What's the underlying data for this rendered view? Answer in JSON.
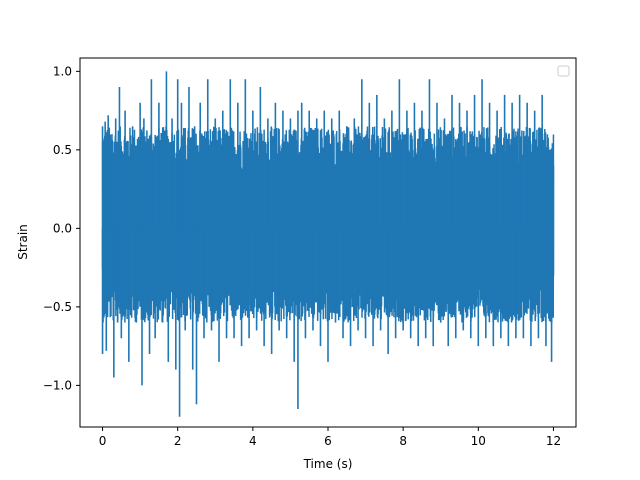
{
  "chart_data": {
    "type": "line",
    "title": "",
    "xlabel": "Time (s)",
    "ylabel": "Strain",
    "xlim": [
      -0.6,
      12.6
    ],
    "ylim": [
      -1.265,
      1.085
    ],
    "xticks": [
      0,
      2,
      4,
      6,
      8,
      10,
      12
    ],
    "xtick_labels": [
      "0",
      "2",
      "4",
      "6",
      "8",
      "10",
      "12"
    ],
    "yticks": [
      -1.0,
      -0.5,
      0.0,
      0.5,
      1.0
    ],
    "ytick_labels": [
      "−1.0",
      "−0.5",
      "0.0",
      "0.5",
      "1.0"
    ],
    "grid": false,
    "legend": {
      "location": "upper right",
      "entries": []
    },
    "series": [
      {
        "color": "#1f77b4",
        "x_range": [
          0,
          12
        ],
        "approx_envelope": {
          "typical_min": -0.6,
          "typical_max": 0.65
        },
        "points": [
          [
            0.0,
            -0.25
          ],
          [
            0.0,
            0.65
          ],
          [
            0.0,
            -0.8
          ],
          [
            0.05,
            0.1
          ],
          [
            0.07,
            0.68
          ],
          [
            0.1,
            -0.78
          ],
          [
            0.15,
            0.72
          ],
          [
            0.2,
            -0.45
          ],
          [
            0.25,
            0.6
          ],
          [
            0.3,
            -0.95
          ],
          [
            0.35,
            0.7
          ],
          [
            0.4,
            -0.6
          ],
          [
            0.45,
            0.9
          ],
          [
            0.5,
            -0.7
          ],
          [
            0.6,
            0.75
          ],
          [
            0.7,
            -0.85
          ],
          [
            0.8,
            0.65
          ],
          [
            0.9,
            -0.6
          ],
          [
            1.0,
            0.8
          ],
          [
            1.05,
            -1.0
          ],
          [
            1.1,
            0.7
          ],
          [
            1.25,
            -0.8
          ],
          [
            1.3,
            0.95
          ],
          [
            1.4,
            -0.7
          ],
          [
            1.5,
            0.8
          ],
          [
            1.6,
            -0.6
          ],
          [
            1.7,
            1.0
          ],
          [
            1.75,
            -0.85
          ],
          [
            1.85,
            0.7
          ],
          [
            1.95,
            -0.9
          ],
          [
            2.0,
            0.95
          ],
          [
            2.05,
            -1.2
          ],
          [
            2.1,
            0.8
          ],
          [
            2.2,
            -0.65
          ],
          [
            2.3,
            0.9
          ],
          [
            2.4,
            -0.9
          ],
          [
            2.45,
            0.65
          ],
          [
            2.5,
            -1.12
          ],
          [
            2.6,
            0.8
          ],
          [
            2.7,
            -0.7
          ],
          [
            2.8,
            0.95
          ],
          [
            2.9,
            -0.65
          ],
          [
            3.0,
            0.7
          ],
          [
            3.1,
            -0.85
          ],
          [
            3.2,
            0.75
          ],
          [
            3.3,
            -0.7
          ],
          [
            3.4,
            0.95
          ],
          [
            3.5,
            -0.7
          ],
          [
            3.6,
            0.8
          ],
          [
            3.7,
            -0.75
          ],
          [
            3.8,
            0.95
          ],
          [
            3.9,
            -0.7
          ],
          [
            4.0,
            0.75
          ],
          [
            4.1,
            -0.65
          ],
          [
            4.2,
            0.9
          ],
          [
            4.3,
            -0.75
          ],
          [
            4.4,
            0.7
          ],
          [
            4.5,
            -0.8
          ],
          [
            4.6,
            0.8
          ],
          [
            4.7,
            -0.65
          ],
          [
            4.8,
            0.75
          ],
          [
            4.9,
            -0.7
          ],
          [
            5.0,
            0.7
          ],
          [
            5.1,
            -0.85
          ],
          [
            5.2,
            0.75
          ],
          [
            5.2,
            -1.15
          ],
          [
            5.3,
            0.8
          ],
          [
            5.4,
            -0.7
          ],
          [
            5.5,
            0.75
          ],
          [
            5.6,
            -0.65
          ],
          [
            5.7,
            0.7
          ],
          [
            5.8,
            -0.75
          ],
          [
            5.9,
            0.75
          ],
          [
            6.0,
            -0.85
          ],
          [
            6.1,
            0.7
          ],
          [
            6.2,
            -0.6
          ],
          [
            6.3,
            0.75
          ],
          [
            6.4,
            -0.7
          ],
          [
            6.5,
            0.65
          ],
          [
            6.6,
            -0.75
          ],
          [
            6.7,
            0.7
          ],
          [
            6.8,
            -0.65
          ],
          [
            6.9,
            0.95
          ],
          [
            7.0,
            -0.7
          ],
          [
            7.1,
            0.8
          ],
          [
            7.2,
            -0.75
          ],
          [
            7.3,
            0.85
          ],
          [
            7.4,
            -0.65
          ],
          [
            7.5,
            0.7
          ],
          [
            7.6,
            -0.8
          ],
          [
            7.7,
            0.75
          ],
          [
            7.8,
            -0.7
          ],
          [
            7.9,
            0.95
          ],
          [
            8.0,
            -0.65
          ],
          [
            8.1,
            0.75
          ],
          [
            8.2,
            -0.7
          ],
          [
            8.3,
            0.8
          ],
          [
            8.4,
            -0.75
          ],
          [
            8.5,
            0.75
          ],
          [
            8.6,
            -0.7
          ],
          [
            8.7,
            0.95
          ],
          [
            8.8,
            -0.75
          ],
          [
            8.9,
            0.8
          ],
          [
            9.0,
            -0.6
          ],
          [
            9.1,
            0.7
          ],
          [
            9.2,
            -0.75
          ],
          [
            9.3,
            0.85
          ],
          [
            9.4,
            -0.7
          ],
          [
            9.5,
            0.8
          ],
          [
            9.6,
            -0.65
          ],
          [
            9.7,
            0.75
          ],
          [
            9.8,
            -0.7
          ],
          [
            9.9,
            0.85
          ],
          [
            10.0,
            -0.75
          ],
          [
            10.1,
            0.95
          ],
          [
            10.2,
            -0.7
          ],
          [
            10.3,
            0.8
          ],
          [
            10.4,
            -0.75
          ],
          [
            10.5,
            0.75
          ],
          [
            10.6,
            -0.7
          ],
          [
            10.7,
            0.85
          ],
          [
            10.8,
            -0.75
          ],
          [
            10.9,
            0.8
          ],
          [
            11.0,
            -0.7
          ],
          [
            11.1,
            0.85
          ],
          [
            11.2,
            -0.7
          ],
          [
            11.3,
            0.8
          ],
          [
            11.4,
            -0.75
          ],
          [
            11.5,
            0.75
          ],
          [
            11.6,
            -0.7
          ],
          [
            11.7,
            0.85
          ],
          [
            11.8,
            -0.75
          ],
          [
            11.9,
            0.5
          ],
          [
            11.95,
            -0.85
          ],
          [
            12.0,
            0.4
          ],
          [
            12.0,
            -0.3
          ]
        ]
      }
    ]
  }
}
